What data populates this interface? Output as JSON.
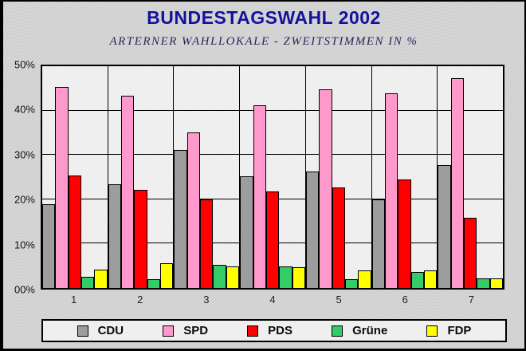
{
  "header": {
    "title": "BUNDESTAGSWAHL 2002",
    "subtitle": "ARTERNER WAHLLOKALE - ZWEITSTIMMEN IN %"
  },
  "colors": {
    "title_text": "#12129e",
    "subtitle_text": "#26265c",
    "frame_background": "#d9d9d9",
    "plot_background": "#f3f3f3",
    "gridline": "#000000",
    "cdu": "#a8a8a8",
    "spd": "#ff99cc",
    "pds": "#ff0000",
    "gruene": "#33cc66",
    "fdp": "#ffff00"
  },
  "chart_data": {
    "type": "bar",
    "title": "BUNDESTAGSWAHL 2002",
    "subtitle": "ARTERNER WAHLLOKALE - ZWEITSTIMMEN IN %",
    "categories": [
      "1",
      "2",
      "3",
      "4",
      "5",
      "6",
      "7"
    ],
    "series": [
      {
        "key": "cdu",
        "name": "CDU",
        "color": "#a8a8a8",
        "pattern": "dotted",
        "values": [
          18.8,
          23.4,
          31.1,
          25.1,
          26.3,
          19.9,
          27.7
        ]
      },
      {
        "key": "spd",
        "name": "SPD",
        "color": "#ff99cc",
        "pattern": "solid",
        "values": [
          45.3,
          43.4,
          35.1,
          41.1,
          44.7,
          43.9,
          47.3
        ]
      },
      {
        "key": "pds",
        "name": "PDS",
        "color": "#ff0000",
        "pattern": "solid",
        "values": [
          25.4,
          22.2,
          19.9,
          21.8,
          22.6,
          24.4,
          15.8
        ]
      },
      {
        "key": "gruene",
        "name": "Grüne",
        "color": "#33cc66",
        "pattern": "solid",
        "values": [
          2.5,
          1.9,
          5.2,
          4.8,
          1.9,
          3.6,
          2.2
        ]
      },
      {
        "key": "fdp",
        "name": "FDP",
        "color": "#ffff00",
        "pattern": "solid",
        "values": [
          4.1,
          5.5,
          4.8,
          4.7,
          3.9,
          3.9,
          2.1
        ]
      }
    ],
    "y_axis": {
      "min": 0,
      "max": 50,
      "step": 10,
      "tick_labels": [
        "00%",
        "10%",
        "20%",
        "30%",
        "40%",
        "50%"
      ]
    },
    "x_axis": {
      "tick_labels": [
        "1",
        "2",
        "3",
        "4",
        "5",
        "6",
        "7"
      ]
    },
    "legend": {
      "position": "bottom",
      "entries": [
        "CDU",
        "SPD",
        "PDS",
        "Grüne",
        "FDP"
      ]
    },
    "grid": true
  }
}
